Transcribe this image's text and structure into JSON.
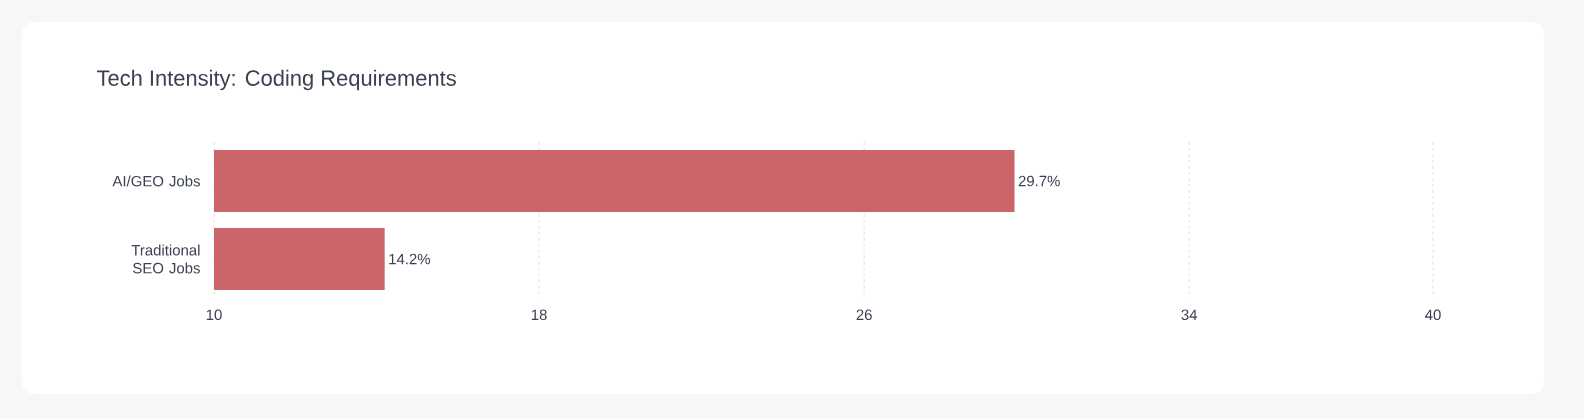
{
  "chart_data": {
    "type": "bar",
    "orientation": "horizontal",
    "title": "Tech Intensity: Coding Requirements",
    "categories": [
      "AI/GEO Jobs",
      "Traditional SEO Jobs"
    ],
    "values": [
      29.7,
      14.2
    ],
    "value_labels": [
      "29.7%",
      "14.2%"
    ],
    "color": "#c9646b",
    "xlim": [
      10,
      40
    ],
    "xticks": [
      10,
      18,
      26,
      34,
      40
    ],
    "grid": "x"
  }
}
